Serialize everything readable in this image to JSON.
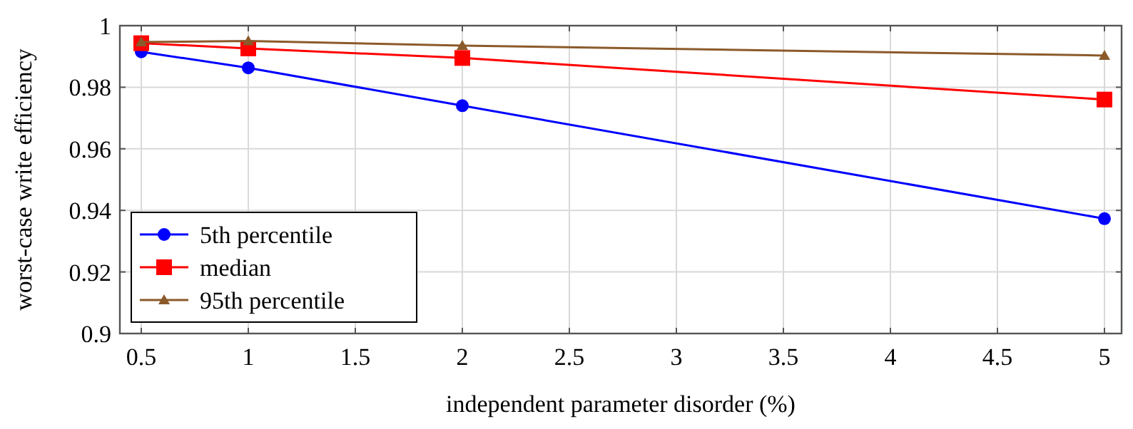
{
  "chart_data": {
    "type": "line",
    "xlabel": "independent parameter disorder (%)",
    "ylabel": "worst-case write efficiency",
    "x": [
      0.5,
      1,
      2,
      5
    ],
    "series": [
      {
        "name": "5th percentile",
        "color": "#0000ff",
        "marker": "circle",
        "values": [
          0.9915,
          0.9863,
          0.974,
          0.9373
        ]
      },
      {
        "name": "median",
        "color": "#ff0000",
        "marker": "square",
        "values": [
          0.9943,
          0.9926,
          0.9895,
          0.976
        ]
      },
      {
        "name": "95th percentile",
        "color": "#8b5a2b",
        "marker": "triangle",
        "values": [
          0.9947,
          0.995,
          0.9935,
          0.9903
        ]
      }
    ],
    "xlim": [
      0.4,
      5.08
    ],
    "ylim": [
      0.9,
      1
    ],
    "xticks": [
      0.5,
      1,
      1.5,
      2,
      2.5,
      3,
      3.5,
      4,
      4.5,
      5
    ],
    "yticks": [
      0.9,
      0.92,
      0.94,
      0.96,
      0.98,
      1
    ],
    "grid": true,
    "legend": "bottom left"
  }
}
